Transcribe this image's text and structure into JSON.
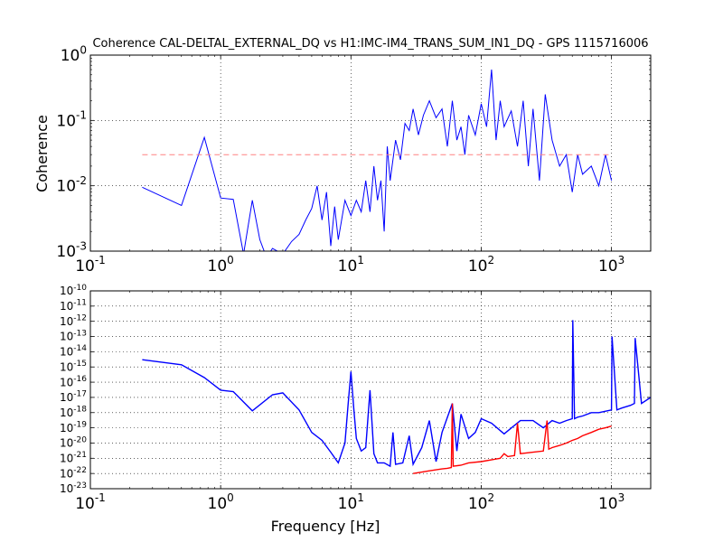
{
  "figure": {
    "title": "Coherence CAL-DELTAL_EXTERNAL_DQ vs H1:IMC-IM4_TRANS_SUM_IN1_DQ - GPS 1115716006"
  },
  "colors": {
    "coherence": "#0000ff",
    "threshold": "#ff8080",
    "blue": "#0000ff",
    "red": "#ff0000"
  },
  "chart_data": [
    {
      "type": "line",
      "name": "coherence",
      "xscale": "log",
      "yscale": "log",
      "xlim": [
        0.1,
        2000
      ],
      "ylim": [
        0.001,
        1
      ],
      "xlabel": "",
      "ylabel": "Coherence",
      "grid": true,
      "xticks": [
        {
          "b": "10",
          "e": "-1",
          "v": 0.1
        },
        {
          "b": "10",
          "e": "0",
          "v": 1
        },
        {
          "b": "10",
          "e": "1",
          "v": 10
        },
        {
          "b": "10",
          "e": "2",
          "v": 100
        },
        {
          "b": "10",
          "e": "3",
          "v": 1000
        }
      ],
      "yticks": [
        {
          "b": "10",
          "e": "-3",
          "v": 0.001
        },
        {
          "b": "10",
          "e": "-2",
          "v": 0.01
        },
        {
          "b": "10",
          "e": "-1",
          "v": 0.1
        },
        {
          "b": "10",
          "e": "0",
          "v": 1
        }
      ],
      "series": [
        {
          "style": "solid",
          "color": "#0000ff",
          "x": [
            0.25,
            0.5,
            0.75,
            1.0,
            1.25,
            1.5,
            1.75,
            2.0,
            2.25,
            2.5,
            3.0,
            3.5,
            4.0,
            4.5,
            5.0,
            5.5,
            6.0,
            6.5,
            7.0,
            7.5,
            8.0,
            9.0,
            10.0,
            11,
            12,
            13,
            14,
            15,
            16,
            17,
            18,
            19,
            20,
            22,
            24,
            26,
            28,
            30,
            33,
            36,
            40,
            45,
            50,
            55,
            60,
            65,
            70,
            75,
            80,
            90,
            100,
            110,
            120,
            130,
            140,
            150,
            170,
            190,
            210,
            230,
            250,
            280,
            310,
            350,
            400,
            450,
            500,
            550,
            600,
            700,
            800,
            900,
            1000
          ],
          "y": [
            0.0095,
            0.005,
            0.055,
            0.0065,
            0.0062,
            0.0009,
            0.006,
            0.0015,
            0.0008,
            0.0011,
            0.0009,
            0.0014,
            0.0018,
            0.003,
            0.0045,
            0.01,
            0.003,
            0.008,
            0.0012,
            0.0048,
            0.0015,
            0.006,
            0.0035,
            0.006,
            0.004,
            0.012,
            0.004,
            0.02,
            0.006,
            0.012,
            0.002,
            0.04,
            0.012,
            0.05,
            0.025,
            0.09,
            0.07,
            0.15,
            0.06,
            0.12,
            0.2,
            0.11,
            0.15,
            0.04,
            0.2,
            0.05,
            0.08,
            0.03,
            0.12,
            0.06,
            0.18,
            0.08,
            0.6,
            0.05,
            0.2,
            0.08,
            0.14,
            0.04,
            0.2,
            0.02,
            0.15,
            0.012,
            0.25,
            0.05,
            0.02,
            0.03,
            0.008,
            0.03,
            0.015,
            0.02,
            0.01,
            0.03,
            0.012
          ]
        },
        {
          "style": "dashed",
          "color": "#ff8080",
          "x": [
            0.25,
            1000
          ],
          "y": [
            0.03,
            0.03
          ]
        }
      ]
    },
    {
      "type": "line",
      "name": "spectrum",
      "xscale": "log",
      "yscale": "log",
      "xlim": [
        0.1,
        2000
      ],
      "ylim": [
        1e-23,
        1e-10
      ],
      "xlabel": "Frequency [Hz]",
      "ylabel": "",
      "grid": true,
      "xticks": [
        {
          "b": "10",
          "e": "-1",
          "v": 0.1
        },
        {
          "b": "10",
          "e": "0",
          "v": 1
        },
        {
          "b": "10",
          "e": "1",
          "v": 10
        },
        {
          "b": "10",
          "e": "2",
          "v": 100
        },
        {
          "b": "10",
          "e": "3",
          "v": 1000
        }
      ],
      "yticks": [
        {
          "b": "10",
          "e": "-23",
          "v": 1e-23
        },
        {
          "b": "10",
          "e": "-22",
          "v": 1e-22
        },
        {
          "b": "10",
          "e": "-21",
          "v": 1e-21
        },
        {
          "b": "10",
          "e": "-20",
          "v": 1e-20
        },
        {
          "b": "10",
          "e": "-19",
          "v": 1e-19
        },
        {
          "b": "10",
          "e": "-18",
          "v": 1e-18
        },
        {
          "b": "10",
          "e": "-17",
          "v": 1e-17
        },
        {
          "b": "10",
          "e": "-16",
          "v": 1e-16
        },
        {
          "b": "10",
          "e": "-15",
          "v": 1e-15
        },
        {
          "b": "10",
          "e": "-14",
          "v": 1e-14
        },
        {
          "b": "10",
          "e": "-13",
          "v": 1e-13
        },
        {
          "b": "10",
          "e": "-12",
          "v": 1e-12
        },
        {
          "b": "10",
          "e": "-11",
          "v": 1e-11
        },
        {
          "b": "10",
          "e": "-10",
          "v": 1e-10
        }
      ],
      "series": [
        {
          "style": "solid",
          "color": "#0000ff",
          "x": [
            0.25,
            0.5,
            0.75,
            1.0,
            1.25,
            1.75,
            2.5,
            3.0,
            4.0,
            5.0,
            6.0,
            7.0,
            8.0,
            9.0,
            9.5,
            10,
            10.5,
            11,
            12,
            13,
            14,
            15,
            16,
            18,
            20,
            21,
            22,
            25,
            28,
            30,
            35,
            40,
            45,
            50,
            60,
            65,
            70,
            80,
            90,
            100,
            120,
            150,
            200,
            250,
            300,
            350,
            400,
            450,
            500,
            505,
            520,
            550,
            600,
            700,
            800,
            1000,
            1010,
            1100,
            1200,
            1400,
            1500,
            1520,
            1700,
            2000
          ],
          "y": [
            3e-15,
            1.4e-15,
            2e-16,
            3e-17,
            2.4e-17,
            1.3e-18,
            1.5e-17,
            2e-17,
            1.5e-18,
            5e-20,
            1.5e-20,
            2.5e-21,
            5e-22,
            1e-20,
            3e-18,
            5e-16,
            2e-18,
            2e-20,
            3e-21,
            5e-21,
            3e-17,
            2e-21,
            5e-22,
            5e-22,
            3e-22,
            5e-20,
            4e-22,
            5e-22,
            3e-20,
            4e-22,
            5e-21,
            3e-19,
            6e-22,
            5e-20,
            4e-18,
            3e-21,
            8e-19,
            2e-20,
            5e-20,
            4e-19,
            2e-19,
            4e-20,
            3e-19,
            3e-19,
            1e-19,
            3e-19,
            2e-19,
            3e-19,
            4e-19,
            1.2e-12,
            4e-19,
            5e-19,
            6e-19,
            1e-18,
            1e-18,
            1.5e-18,
            1e-13,
            1.5e-18,
            2e-18,
            3e-18,
            4e-18,
            8e-14,
            4e-18,
            1e-17
          ]
        },
        {
          "style": "solid",
          "color": "#ff0000",
          "x": [
            30,
            40,
            50,
            55,
            59,
            60,
            61,
            70,
            80,
            100,
            140,
            150,
            160,
            180,
            190,
            200,
            250,
            300,
            320,
            330,
            350,
            400,
            450,
            500,
            550,
            600,
            700,
            800,
            900,
            1000
          ],
          "y": [
            1e-22,
            1.5e-22,
            2e-22,
            2.2e-22,
            2.5e-22,
            4e-18,
            3e-22,
            3.5e-22,
            5e-22,
            6e-22,
            1e-21,
            2e-21,
            1.3e-21,
            1.5e-21,
            2e-19,
            2e-21,
            2.5e-21,
            3e-21,
            3e-19,
            4e-21,
            5e-21,
            7e-21,
            1e-20,
            1.5e-20,
            2e-20,
            3e-20,
            5e-20,
            8e-20,
            1e-19,
            1.3e-19
          ]
        }
      ]
    }
  ]
}
